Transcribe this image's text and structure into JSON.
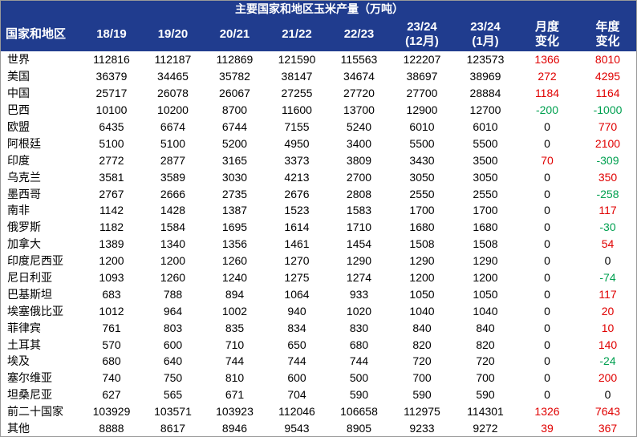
{
  "title": "主要国家和地区玉米产量（万吨）",
  "header": [
    [
      "国家和地区"
    ],
    [
      "18/19"
    ],
    [
      "19/20"
    ],
    [
      "20/21"
    ],
    [
      "21/22"
    ],
    [
      "22/23"
    ],
    [
      "23/24",
      "(12月)"
    ],
    [
      "23/24",
      "(1月)"
    ],
    [
      "月度",
      "变化"
    ],
    [
      "年度",
      "变化"
    ]
  ],
  "rows": [
    [
      "世界",
      112816,
      112187,
      112869,
      121590,
      115563,
      122207,
      123573,
      1366,
      8010
    ],
    [
      "美国",
      36379,
      34465,
      35782,
      38147,
      34674,
      38697,
      38969,
      272,
      4295
    ],
    [
      "中国",
      25717,
      26078,
      26067,
      27255,
      27720,
      27700,
      28884,
      1184,
      1164
    ],
    [
      "巴西",
      10100,
      10200,
      8700,
      11600,
      13700,
      12900,
      12700,
      -200,
      -1000
    ],
    [
      "欧盟",
      6435,
      6674,
      6744,
      7155,
      5240,
      6010,
      6010,
      0,
      770
    ],
    [
      "阿根廷",
      5100,
      5100,
      5200,
      4950,
      3400,
      5500,
      5500,
      0,
      2100
    ],
    [
      "印度",
      2772,
      2877,
      3165,
      3373,
      3809,
      3430,
      3500,
      70,
      -309
    ],
    [
      "乌克兰",
      3581,
      3589,
      3030,
      4213,
      2700,
      3050,
      3050,
      0,
      350
    ],
    [
      "墨西哥",
      2767,
      2666,
      2735,
      2676,
      2808,
      2550,
      2550,
      0,
      -258
    ],
    [
      "南非",
      1142,
      1428,
      1387,
      1523,
      1583,
      1700,
      1700,
      0,
      117
    ],
    [
      "俄罗斯",
      1182,
      1584,
      1695,
      1614,
      1710,
      1680,
      1680,
      0,
      -30
    ],
    [
      "加拿大",
      1389,
      1340,
      1356,
      1461,
      1454,
      1508,
      1508,
      0,
      54
    ],
    [
      "印度尼西亚",
      1200,
      1200,
      1260,
      1270,
      1290,
      1290,
      1290,
      0,
      0
    ],
    [
      "尼日利亚",
      1093,
      1260,
      1240,
      1275,
      1274,
      1200,
      1200,
      0,
      -74
    ],
    [
      "巴基斯坦",
      683,
      788,
      894,
      1064,
      933,
      1050,
      1050,
      0,
      117
    ],
    [
      "埃塞俄比亚",
      1012,
      964,
      1002,
      940,
      1020,
      1040,
      1040,
      0,
      20
    ],
    [
      "菲律宾",
      761,
      803,
      835,
      834,
      830,
      840,
      840,
      0,
      10
    ],
    [
      "土耳其",
      570,
      600,
      710,
      650,
      680,
      820,
      820,
      0,
      140
    ],
    [
      "埃及",
      680,
      640,
      744,
      744,
      744,
      720,
      720,
      0,
      -24
    ],
    [
      "塞尔维亚",
      740,
      750,
      810,
      600,
      500,
      700,
      700,
      0,
      200
    ],
    [
      "坦桑尼亚",
      627,
      565,
      671,
      704,
      590,
      590,
      590,
      0,
      0
    ],
    [
      "前二十国家",
      103929,
      103571,
      103923,
      112046,
      106658,
      112975,
      114301,
      1326,
      7643
    ],
    [
      "其他",
      8888,
      8617,
      8946,
      9543,
      8905,
      9233,
      9272,
      39,
      367
    ]
  ]
}
